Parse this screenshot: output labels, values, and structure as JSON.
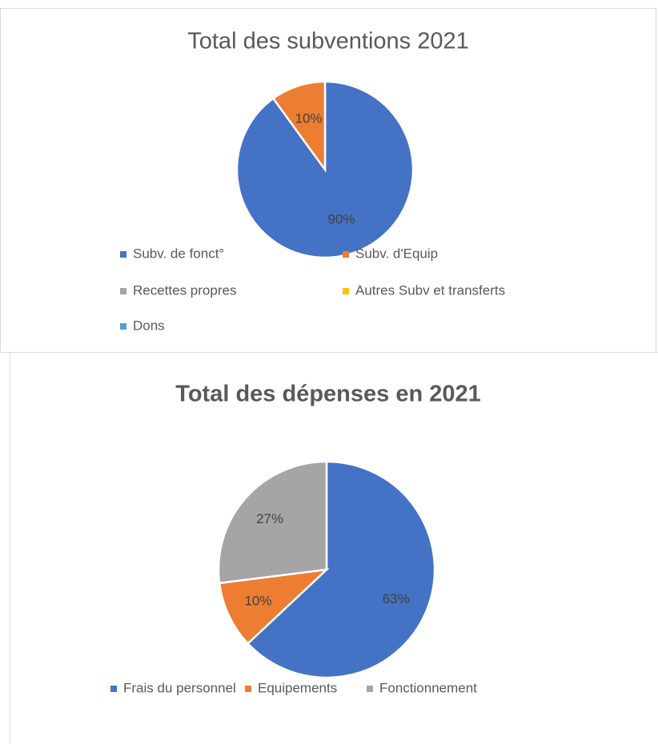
{
  "chart_data": [
    {
      "type": "pie",
      "title": "Total des subventions 2021",
      "categories": [
        "Subv. de fonct°",
        "Subv. d'Equip",
        "Recettes propres",
        "Autres Subv et transferts",
        "Dons"
      ],
      "values": [
        90,
        10,
        0,
        0,
        0
      ],
      "value_labels": [
        "90%",
        "10%",
        null,
        null,
        null
      ],
      "colors": [
        "#4472c4",
        "#ed7d31",
        "#a5a5a5",
        "#ffc000",
        "#5b9bd5"
      ]
    },
    {
      "type": "pie",
      "title": "Total des dépenses en 2021",
      "categories": [
        "Frais du personnel",
        "Equipements",
        "Fonctionnement"
      ],
      "values": [
        63,
        10,
        27
      ],
      "value_labels": [
        "63%",
        "10%",
        "27%"
      ],
      "colors": [
        "#4472c4",
        "#ed7d31",
        "#a5a5a5"
      ]
    }
  ]
}
